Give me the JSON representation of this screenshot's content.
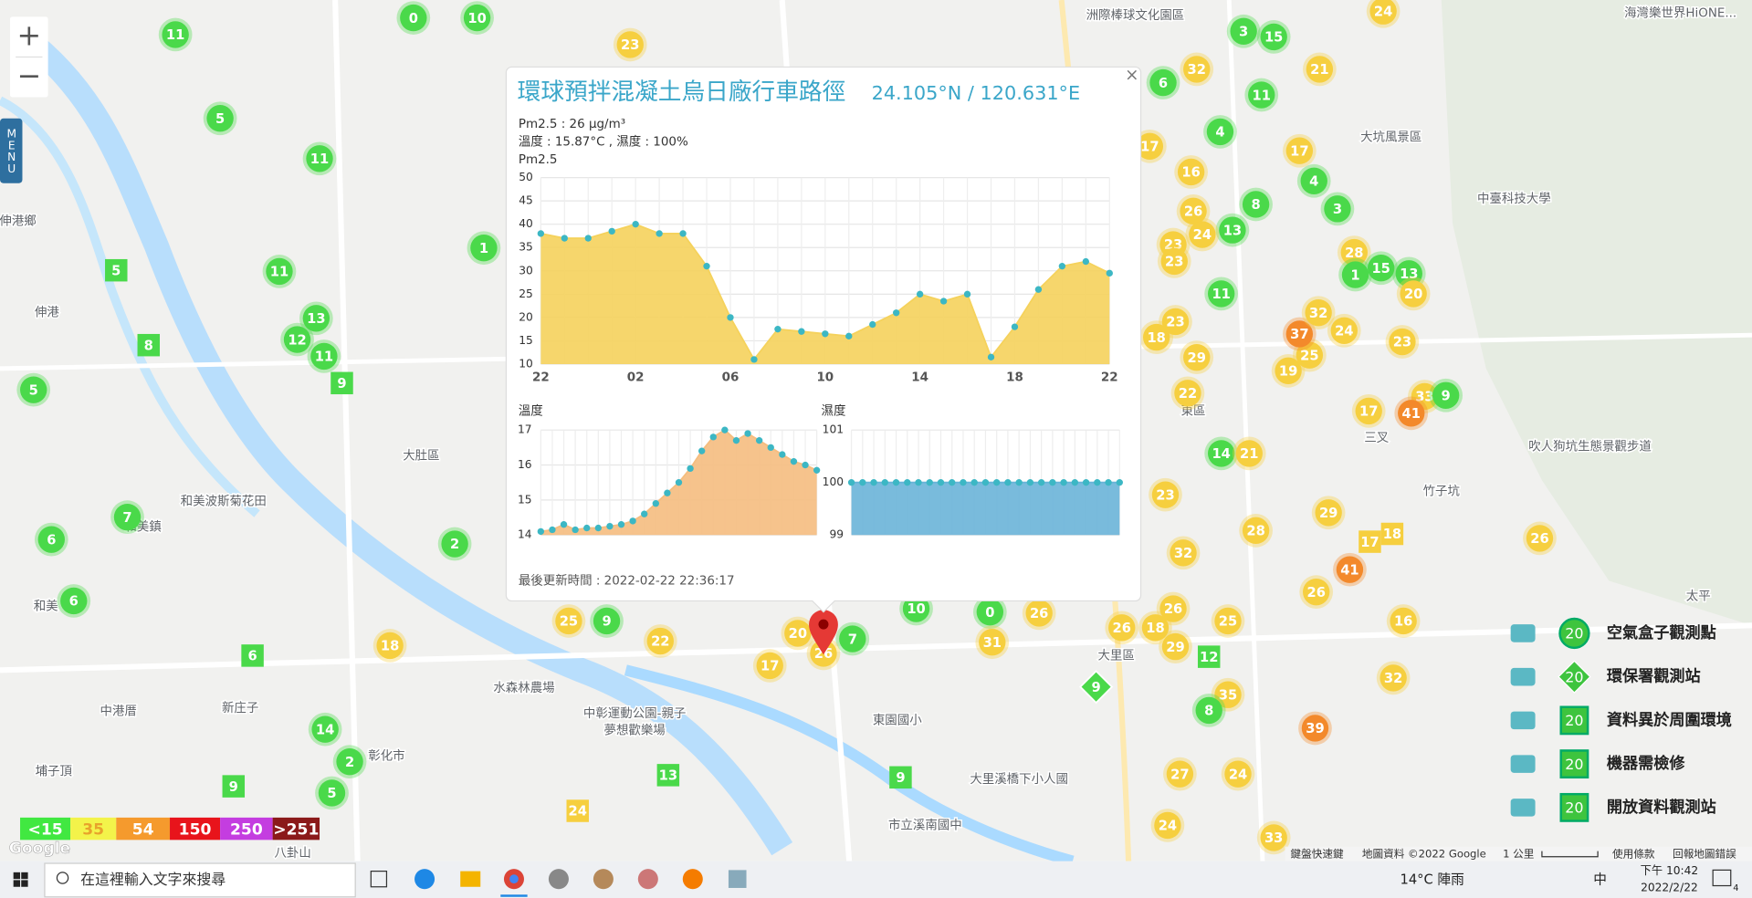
{
  "controls": {
    "zoom_in": "+",
    "zoom_out": "−",
    "menu": "MENU"
  },
  "map": {
    "places": [
      "大肚區",
      "和美鎮",
      "彰化市",
      "大里區",
      "東區",
      "大坑風景區",
      "中臺科技大學",
      "洲際棒球文化園區",
      "水森林農場",
      "中彰運動公園-親子",
      "夢想歡樂場",
      "東園國小",
      "市立溪南國中",
      "大里溪橋下小人國",
      "吹人狗坑生態景觀步道",
      "三叉",
      "伸港鄉",
      "伸港",
      "和美",
      "新庄子",
      "埔子頂",
      "中港厝",
      "海灣樂世界HiONE...",
      "和美波斯菊花田",
      "八卦山",
      "太平",
      "竹子坑"
    ],
    "markers": [
      {
        "value": 11,
        "color": "#4ad94a"
      },
      {
        "value": 0,
        "color": "#4ad94a"
      },
      {
        "value": 10,
        "color": "#4ad94a"
      },
      {
        "value": 5,
        "color": "#4ad94a"
      },
      {
        "value": 11,
        "color": "#4ad94a"
      },
      {
        "value": 11,
        "color": "#4ad94a"
      },
      {
        "value": 13,
        "color": "#4ad94a"
      },
      {
        "value": 12,
        "color": "#4ad94a"
      },
      {
        "value": 11,
        "color": "#4ad94a"
      },
      {
        "value": 5,
        "color": "#4ad94a"
      },
      {
        "value": 7,
        "color": "#4ad94a"
      },
      {
        "value": 6,
        "color": "#4ad94a"
      },
      {
        "value": 6,
        "color": "#4ad94a"
      },
      {
        "value": 2,
        "color": "#4ad94a"
      },
      {
        "value": 1,
        "color": "#4ad94a"
      },
      {
        "value": 18,
        "color": "#f6cf3f"
      },
      {
        "value": 14,
        "color": "#4ad94a"
      },
      {
        "value": 2,
        "color": "#4ad94a"
      },
      {
        "value": 5,
        "color": "#4ad94a"
      },
      {
        "value": 9,
        "color": "#4ad94a",
        "shape": "square"
      },
      {
        "value": 6,
        "color": "#4ad94a",
        "shape": "square"
      },
      {
        "value": 9,
        "color": "#4ad94a",
        "shape": "square"
      },
      {
        "value": 8,
        "color": "#4ad94a",
        "shape": "square"
      },
      {
        "value": 5,
        "color": "#4ad94a",
        "shape": "square"
      },
      {
        "value": 13,
        "color": "#4ad94a",
        "shape": "square"
      },
      {
        "value": 9,
        "color": "#4ad94a",
        "shape": "square"
      },
      {
        "value": 24,
        "color": "#f6cf3f",
        "shape": "square"
      },
      {
        "value": 25,
        "color": "#f6cf3f"
      },
      {
        "value": 9,
        "color": "#4ad94a"
      },
      {
        "value": 22,
        "color": "#f6cf3f"
      },
      {
        "value": 17,
        "color": "#f6cf3f"
      },
      {
        "value": 20,
        "color": "#f6cf3f"
      },
      {
        "value": 7,
        "color": "#4ad94a"
      },
      {
        "value": 26,
        "color": "#f6cf3f"
      },
      {
        "value": 10,
        "color": "#4ad94a"
      },
      {
        "value": 0,
        "color": "#4ad94a"
      },
      {
        "value": 31,
        "color": "#f6cf3f"
      },
      {
        "value": 26,
        "color": "#f6cf3f"
      },
      {
        "value": 26,
        "color": "#f6cf3f"
      },
      {
        "value": 18,
        "color": "#f6cf3f"
      },
      {
        "value": 29,
        "color": "#f6cf3f"
      },
      {
        "value": 26,
        "color": "#f6cf3f"
      },
      {
        "value": 25,
        "color": "#f6cf3f"
      },
      {
        "value": 35,
        "color": "#f6cf3f"
      },
      {
        "value": 8,
        "color": "#4ad94a"
      },
      {
        "value": 39,
        "color": "#f3892b"
      },
      {
        "value": 12,
        "color": "#4ad94a",
        "shape": "square"
      },
      {
        "value": 27,
        "color": "#f6cf3f"
      },
      {
        "value": 24,
        "color": "#f6cf3f"
      },
      {
        "value": 24,
        "color": "#f6cf3f"
      },
      {
        "value": 33,
        "color": "#f6cf3f"
      },
      {
        "value": 9,
        "color": "#4ad94a",
        "shape": "diamond"
      },
      {
        "value": 32,
        "color": "#f6cf3f"
      },
      {
        "value": 16,
        "color": "#f6cf3f"
      },
      {
        "value": 26,
        "color": "#f6cf3f"
      },
      {
        "value": 41,
        "color": "#f3892b"
      },
      {
        "value": 17,
        "color": "#f6cf3f",
        "shape": "square"
      },
      {
        "value": 18,
        "color": "#f6cf3f",
        "shape": "square"
      },
      {
        "value": 29,
        "color": "#f6cf3f"
      },
      {
        "value": 28,
        "color": "#f6cf3f"
      },
      {
        "value": 32,
        "color": "#f6cf3f"
      },
      {
        "value": 23,
        "color": "#f6cf3f"
      },
      {
        "value": 14,
        "color": "#4ad94a"
      },
      {
        "value": 21,
        "color": "#f6cf3f"
      },
      {
        "value": 22,
        "color": "#f6cf3f"
      },
      {
        "value": 19,
        "color": "#f6cf3f"
      },
      {
        "value": 25,
        "color": "#f6cf3f"
      },
      {
        "value": 37,
        "color": "#f3892b"
      },
      {
        "value": 32,
        "color": "#f6cf3f"
      },
      {
        "value": 24,
        "color": "#f6cf3f"
      },
      {
        "value": 23,
        "color": "#f6cf3f"
      },
      {
        "value": 33,
        "color": "#f6cf3f"
      },
      {
        "value": 17,
        "color": "#f6cf3f"
      },
      {
        "value": 41,
        "color": "#f3892b"
      },
      {
        "value": 29,
        "color": "#f6cf3f"
      },
      {
        "value": 18,
        "color": "#f6cf3f"
      },
      {
        "value": 23,
        "color": "#f6cf3f"
      },
      {
        "value": 11,
        "color": "#4ad94a"
      },
      {
        "value": 13,
        "color": "#4ad94a"
      },
      {
        "value": 8,
        "color": "#4ad94a"
      },
      {
        "value": 26,
        "color": "#f6cf3f"
      },
      {
        "value": 24,
        "color": "#f6cf3f"
      },
      {
        "value": 23,
        "color": "#f6cf3f"
      },
      {
        "value": 23,
        "color": "#f6cf3f"
      },
      {
        "value": 16,
        "color": "#f6cf3f"
      },
      {
        "value": 17,
        "color": "#f6cf3f"
      },
      {
        "value": 4,
        "color": "#4ad94a"
      },
      {
        "value": 11,
        "color": "#4ad94a"
      },
      {
        "value": 3,
        "color": "#4ad94a"
      },
      {
        "value": 15,
        "color": "#4ad94a"
      },
      {
        "value": 32,
        "color": "#f6cf3f"
      },
      {
        "value": 6,
        "color": "#4ad94a"
      },
      {
        "value": 21,
        "color": "#f6cf3f"
      },
      {
        "value": 17,
        "color": "#f6cf3f"
      },
      {
        "value": 4,
        "color": "#4ad94a"
      },
      {
        "value": 3,
        "color": "#4ad94a"
      },
      {
        "value": 28,
        "color": "#f6cf3f"
      },
      {
        "value": 1,
        "color": "#4ad94a"
      },
      {
        "value": 15,
        "color": "#4ad94a"
      },
      {
        "value": 13,
        "color": "#4ad94a"
      },
      {
        "value": 20,
        "color": "#f6cf3f"
      },
      {
        "value": 26,
        "color": "#f6cf3f"
      },
      {
        "value": 23,
        "color": "#f6cf3f"
      },
      {
        "value": 24,
        "color": "#f6cf3f"
      },
      {
        "value": 9,
        "color": "#4ad94a"
      }
    ]
  },
  "popup": {
    "close": "×",
    "title": "環球預拌混凝土烏日廠行車路徑",
    "coords": "24.105°N / 120.631°E",
    "pm_line": "Pm2.5 : 26 μg/m³",
    "weather_line": "溫度 : 15.87°C , 濕度 : 100%",
    "updated": "最後更新時間 : 2022-02-22 22:36:17",
    "charts": [
      {
        "type": "area",
        "title": "Pm2.5",
        "color": "#f5d25c",
        "point_color": "#3cb7c4",
        "categories": [
          "22",
          null,
          null,
          null,
          "02",
          null,
          null,
          null,
          "06",
          null,
          null,
          null,
          "10",
          null,
          null,
          null,
          "14",
          null,
          null,
          null,
          "18",
          null,
          null,
          null,
          "22"
        ],
        "values": [
          38,
          37,
          37,
          38.5,
          40,
          38,
          38,
          31,
          20,
          11,
          17.5,
          17,
          16.5,
          16,
          18.5,
          21,
          25,
          23.5,
          25,
          11.5,
          18,
          26,
          31,
          32,
          29.5
        ],
        "ylim": [
          10,
          50
        ],
        "yticks": [
          10,
          15,
          20,
          25,
          30,
          35,
          40,
          45,
          50
        ],
        "grid": true
      },
      {
        "type": "area",
        "title": "溫度",
        "color": "#f5bd7f",
        "point_color": "#3cb7c4",
        "categories": [
          null,
          null,
          null,
          null,
          null,
          null,
          null,
          null,
          null,
          null,
          null,
          null,
          null,
          null,
          null,
          null,
          null,
          null,
          null,
          null,
          null,
          null,
          null,
          null,
          null
        ],
        "values": [
          14.1,
          14.15,
          14.3,
          14.15,
          14.2,
          14.2,
          14.25,
          14.3,
          14.4,
          14.6,
          14.9,
          15.2,
          15.5,
          15.9,
          16.4,
          16.8,
          17,
          16.7,
          16.9,
          16.7,
          16.5,
          16.3,
          16.1,
          16,
          15.85
        ],
        "ylim": [
          14,
          17
        ],
        "yticks": [
          14,
          15,
          16,
          17
        ],
        "grid": true
      },
      {
        "type": "area",
        "title": "濕度",
        "color": "#6ab4d8",
        "point_color": "#3cb7c4",
        "categories": [
          null,
          null,
          null,
          null,
          null,
          null,
          null,
          null,
          null,
          null,
          null,
          null,
          null,
          null,
          null,
          null,
          null,
          null,
          null,
          null,
          null,
          null,
          null,
          null,
          null
        ],
        "values": [
          100,
          100,
          100,
          100,
          100,
          100,
          100,
          100,
          100,
          100,
          100,
          100,
          100,
          100,
          100,
          100,
          100,
          100,
          100,
          100,
          100,
          100,
          100,
          100,
          100
        ],
        "ylim": [
          99,
          101
        ],
        "yticks": [
          99,
          100,
          101
        ],
        "grid": true
      }
    ]
  },
  "aqi_legend": [
    {
      "label": "<15",
      "color": "#41e841"
    },
    {
      "label": "35",
      "color": "#f3f34a"
    },
    {
      "label": "54",
      "color": "#f59a2d"
    },
    {
      "label": "150",
      "color": "#e8141b"
    },
    {
      "label": "250",
      "color": "#c43de0"
    },
    {
      "label": ">251",
      "color": "#8b1a1a"
    }
  ],
  "station_legend": {
    "sample": "20",
    "items": [
      "空氣盒子觀測點",
      "環保署觀測站",
      "資料異於周圍環境",
      "機器需檢修",
      "開放資料觀測站"
    ]
  },
  "footer": [
    "鍵盤快速鍵",
    "地圖資料 ©2022 Google",
    "1 公里",
    "使用條款",
    "回報地圖錯誤"
  ],
  "google": "Google",
  "taskbar": {
    "search": "在這裡輸入文字來搜尋",
    "weather": "14°C 陣雨",
    "ime": "中",
    "time": "下午 10:42",
    "date": "2022/2/22",
    "notifications": "4"
  }
}
